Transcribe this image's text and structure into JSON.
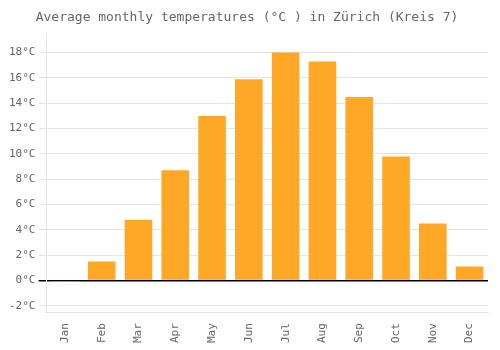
{
  "chart_data": {
    "type": "bar",
    "title": "Average monthly temperatures (°C ) in Zürich (Kreis 7)",
    "categories": [
      "Jan",
      "Feb",
      "Mar",
      "Apr",
      "May",
      "Jun",
      "Jul",
      "Aug",
      "Sep",
      "Oct",
      "Nov",
      "Dec"
    ],
    "values": [
      -0.1,
      1.5,
      4.8,
      8.7,
      13.0,
      15.9,
      18.0,
      17.3,
      14.5,
      9.8,
      4.5,
      1.1
    ],
    "color": "#FFA726",
    "ylim": [
      -2.5,
      19.5
    ],
    "yticks": [
      {
        "value": -2,
        "label": "-2°C"
      },
      {
        "value": 0,
        "label": "0°C"
      },
      {
        "value": 2,
        "label": "2°C"
      },
      {
        "value": 4,
        "label": "4°C"
      },
      {
        "value": 6,
        "label": "6°C"
      },
      {
        "value": 8,
        "label": "8°C"
      },
      {
        "value": 10,
        "label": "10°C"
      },
      {
        "value": 12,
        "label": "12°C"
      },
      {
        "value": 14,
        "label": "14°C"
      },
      {
        "value": 16,
        "label": "16°C"
      },
      {
        "value": 18,
        "label": "18°C"
      }
    ],
    "grid": true
  }
}
